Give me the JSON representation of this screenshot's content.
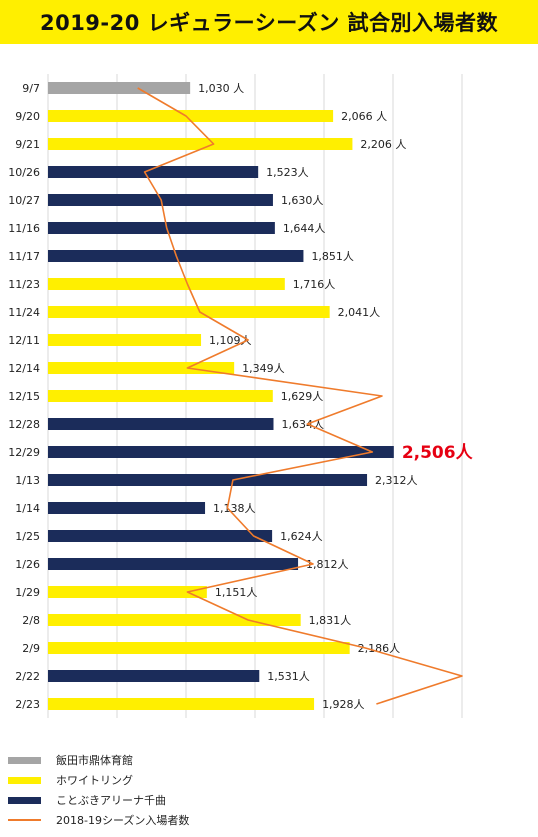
{
  "title": "2019-20 レギュラーシーズン 試合別入場者数",
  "chart_data": {
    "type": "bar",
    "orientation": "horizontal",
    "xlim": [
      0,
      3000
    ],
    "grid": true,
    "categories": [
      "9/7",
      "9/20",
      "9/21",
      "10/26",
      "10/27",
      "11/16",
      "11/17",
      "11/23",
      "11/24",
      "12/11",
      "12/14",
      "12/15",
      "12/28",
      "12/29",
      "1/13",
      "1/14",
      "1/25",
      "1/26",
      "1/29",
      "2/8",
      "2/9",
      "2/22",
      "2/23"
    ],
    "values": [
      1030,
      2066,
      2206,
      1523,
      1630,
      1644,
      1851,
      1716,
      2041,
      1109,
      1349,
      1629,
      1634,
      2506,
      2312,
      1138,
      1624,
      1812,
      1151,
      1831,
      2186,
      1531,
      1928
    ],
    "value_labels": [
      "1,030 人",
      "2,066 人",
      "2,206 人",
      "1,523人",
      "1,630人",
      "1,644人",
      "1,851人",
      "1,716人",
      "2,041人",
      "1,109人",
      "1,349人",
      "1,629人",
      "1,634人",
      "2,506人",
      "2,312人",
      "1,138人",
      "1,624人",
      "1,812人",
      "1,151人",
      "1,831人",
      "2,186人",
      "1,531人",
      "1,928人"
    ],
    "venue": [
      0,
      1,
      1,
      2,
      2,
      2,
      2,
      1,
      1,
      1,
      1,
      1,
      2,
      2,
      2,
      2,
      2,
      2,
      1,
      1,
      1,
      2,
      1
    ],
    "highlight_index": 13,
    "highlight_color": "#e60012",
    "venues": [
      {
        "name": "飯田市鼎体育館",
        "color": "#a5a5a5"
      },
      {
        "name": "ホワイトリング",
        "color": "#ffef00"
      },
      {
        "name": "ことぶきアリーナ千曲",
        "color": "#1b2c5a"
      }
    ],
    "line_series": {
      "name": "2018-19シーズン入場者数",
      "color": "#ef7b2c",
      "values": [
        650,
        1000,
        1200,
        700,
        820,
        860,
        930,
        1010,
        1100,
        1450,
        1010,
        2420,
        1880,
        2350,
        1340,
        1300,
        1490,
        1920,
        1010,
        1450,
        2300,
        3000,
        2380
      ]
    }
  },
  "legend_colors": {
    "line": "#ef7b2c"
  }
}
